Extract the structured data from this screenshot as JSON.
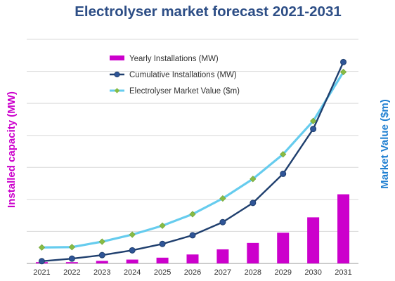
{
  "chart_data": {
    "type": "bar",
    "title": "Electrolyser market forecast 2021-2031",
    "ylabel_left": "Installed  capacity (MW)",
    "ylabel_right": "Market Value ($m)",
    "categories": [
      "2021",
      "2022",
      "2023",
      "2024",
      "2025",
      "2026",
      "2027",
      "2028",
      "2029",
      "2030",
      "2031"
    ],
    "grid": true,
    "legend_position": "top-left",
    "series": [
      {
        "name": "Yearly Installations (MW)",
        "type": "bar",
        "axis": "left",
        "color": "#cc00cc",
        "values": [
          0.4,
          0.4,
          0.8,
          1.2,
          1.8,
          2.8,
          4.4,
          6.4,
          9.6,
          14.4,
          21.6
        ]
      },
      {
        "name": "Cumulative Installations (MW)",
        "type": "line",
        "axis": "left",
        "color": "#1f3f6e",
        "marker": "circle",
        "values": [
          0.7,
          1.5,
          2.6,
          4.1,
          6.1,
          8.8,
          12.9,
          18.9,
          28.0,
          42.0,
          62.9
        ]
      },
      {
        "name": "Electrolyser Market Value ($m)",
        "type": "line",
        "axis": "right",
        "color": "#66ccee",
        "marker": "diamond",
        "marker_color": "#88bb44",
        "values": [
          5.0,
          5.1,
          6.8,
          9.0,
          11.8,
          15.4,
          20.3,
          26.4,
          34.1,
          44.5,
          59.8
        ]
      }
    ]
  }
}
